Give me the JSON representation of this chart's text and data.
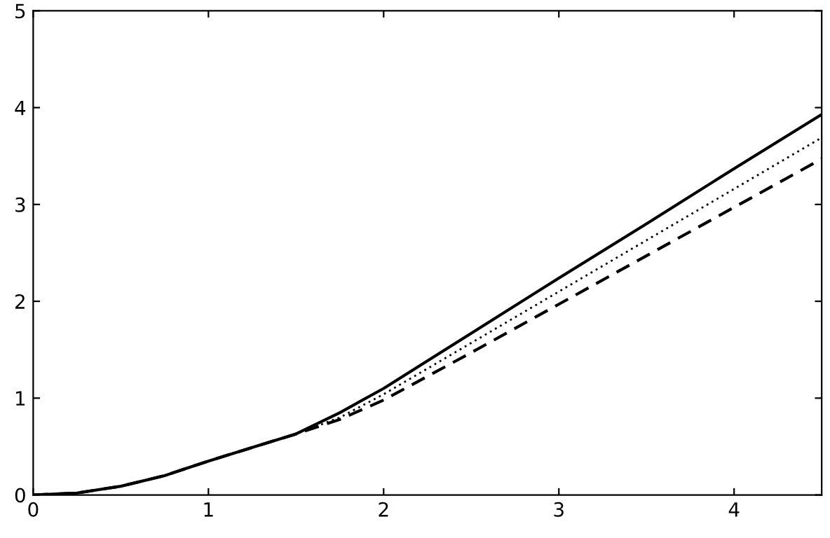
{
  "chart_data": {
    "type": "line",
    "xlim": [
      0,
      4.5
    ],
    "ylim": [
      0,
      5
    ],
    "xticks": [
      0,
      1,
      2,
      3,
      4
    ],
    "yticks": [
      0,
      1,
      2,
      3,
      4,
      5
    ],
    "grid": false,
    "legend": false,
    "marker": "none",
    "series": [
      {
        "color": "#000000",
        "line_style": "solid",
        "x": [
          0,
          0.25,
          0.5,
          0.75,
          1,
          1.25,
          1.5,
          1.75,
          2,
          2.5,
          3,
          3.5,
          4,
          4.5
        ],
        "values": [
          0,
          0.02,
          0.09,
          0.2,
          0.35,
          0.49,
          0.63,
          0.85,
          1.1,
          1.67,
          2.24,
          2.8,
          3.37,
          3.93
        ]
      },
      {
        "color": "#000000",
        "line_style": "dotted",
        "x": [
          0,
          0.25,
          0.5,
          0.75,
          1,
          1.25,
          1.5,
          1.75,
          2,
          2.5,
          3,
          3.5,
          4,
          4.5
        ],
        "values": [
          0,
          0.02,
          0.09,
          0.2,
          0.35,
          0.49,
          0.63,
          0.8,
          1.04,
          1.57,
          2.1,
          2.63,
          3.16,
          3.69
        ]
      },
      {
        "color": "#000000",
        "line_style": "dashed",
        "x": [
          0,
          0.25,
          0.5,
          0.75,
          1,
          1.25,
          1.5,
          1.75,
          2,
          2.5,
          3,
          3.5,
          4,
          4.5
        ],
        "values": [
          0,
          0.02,
          0.09,
          0.2,
          0.35,
          0.49,
          0.63,
          0.78,
          0.98,
          1.47,
          1.97,
          2.47,
          2.97,
          3.47
        ]
      }
    ]
  }
}
